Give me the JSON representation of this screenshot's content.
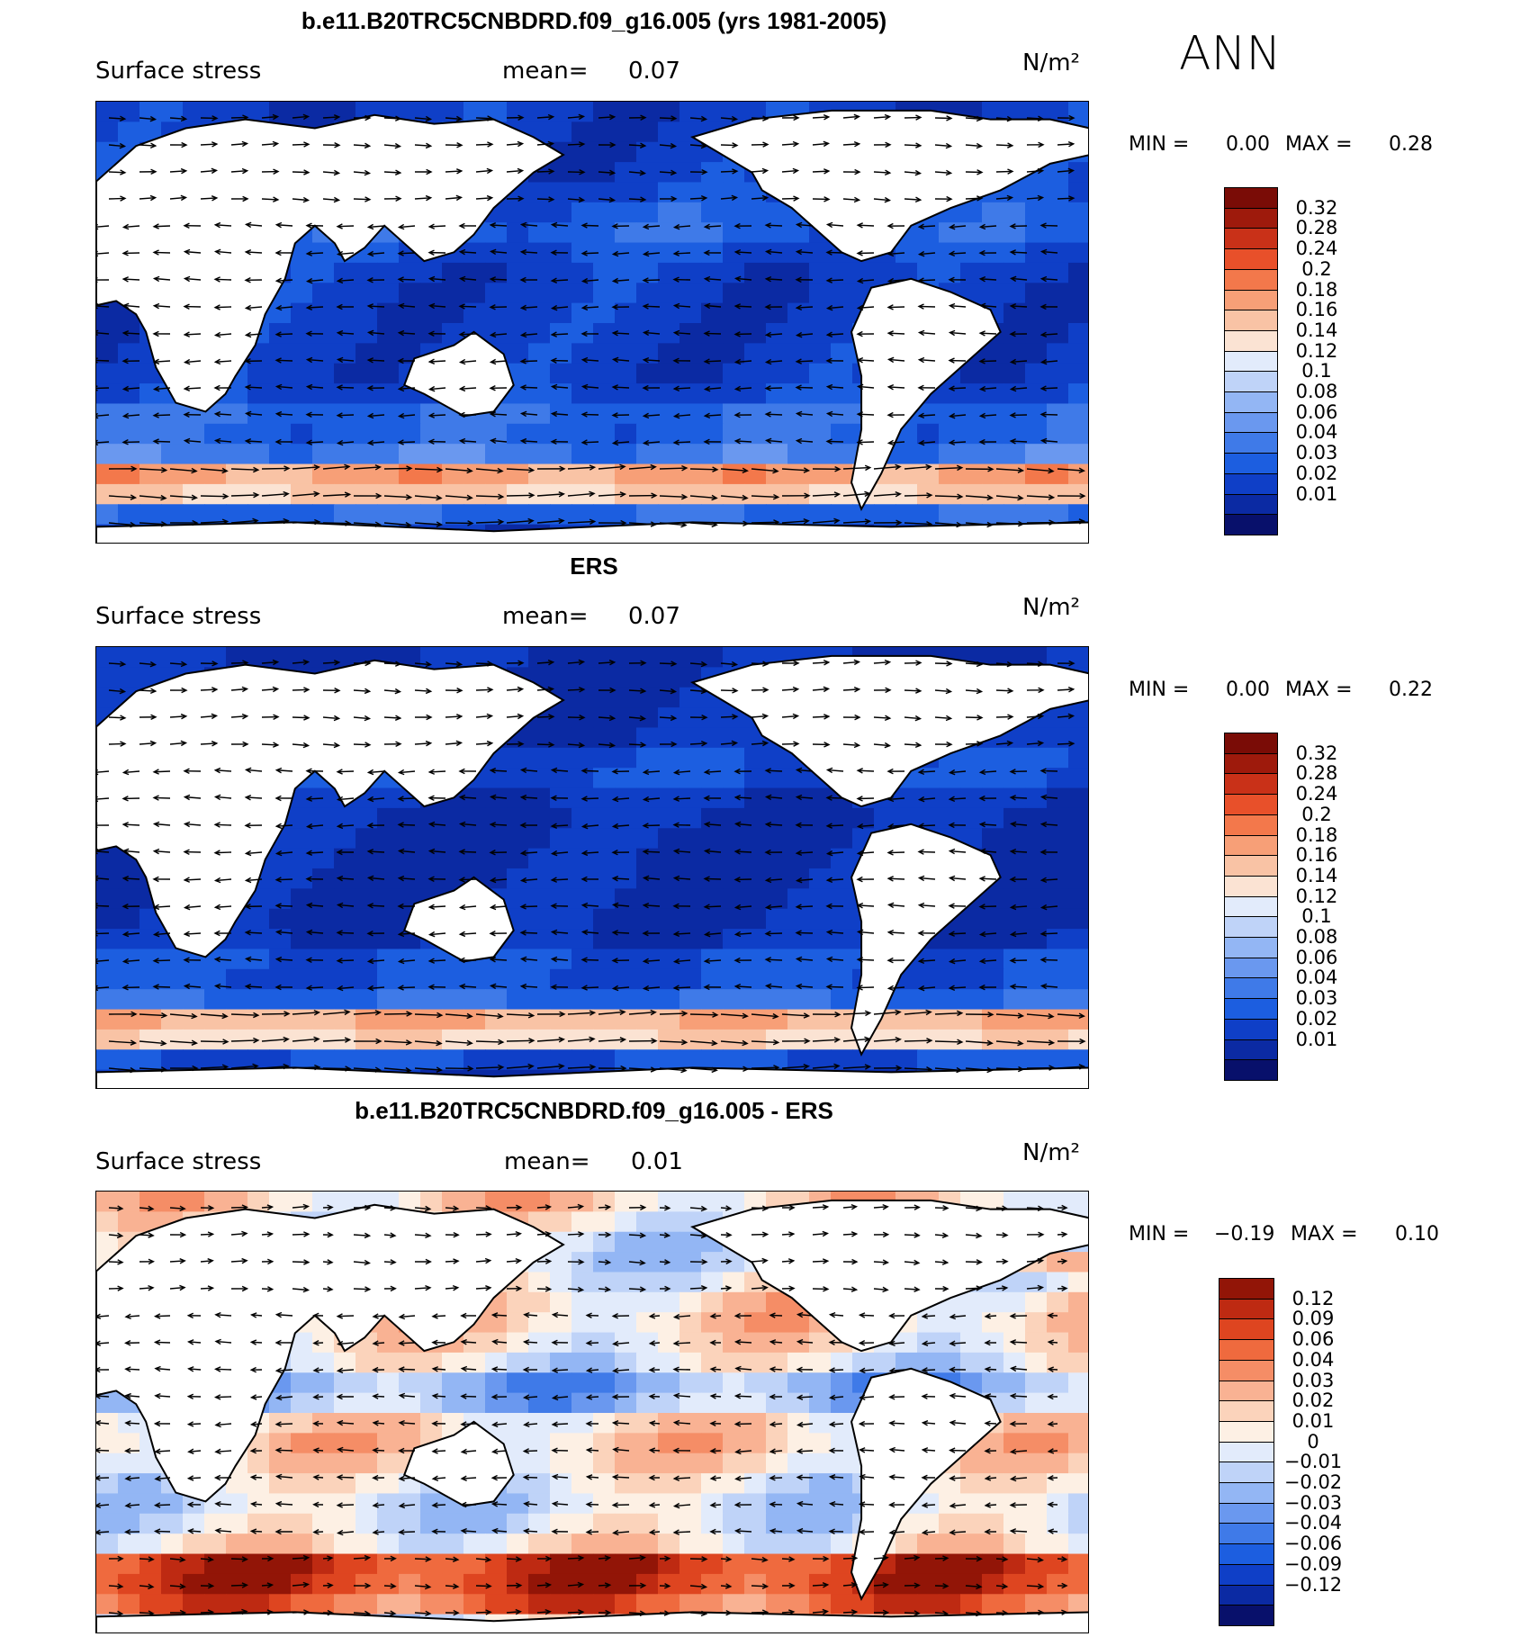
{
  "season": "ANN",
  "colors": {
    "pos_scale": [
      "#08106b",
      "#0b2aa3",
      "#0f3fc7",
      "#1c5ee0",
      "#3f7ae8",
      "#6a98ef",
      "#93b6f4",
      "#bfd3f8",
      "#e2ebfb",
      "#fbe3d3",
      "#f9c3a5",
      "#f79f77",
      "#f3784b",
      "#e8502a",
      "#c93118",
      "#9e1a0c",
      "#7a0c06"
    ],
    "diff_scale": [
      "#08106b",
      "#0b2aa3",
      "#0f3fc7",
      "#1c5ee0",
      "#3f7ae8",
      "#6a98ef",
      "#93b6f4",
      "#bfd3f8",
      "#e2ebfb",
      "#fdf0e4",
      "#fbd3bb",
      "#f9b293",
      "#f58d66",
      "#ef6a3e",
      "#de4520",
      "#be2a12",
      "#921507"
    ],
    "land": "#ffffff",
    "coast": "#000000"
  },
  "panels": [
    {
      "title": "b.e11.B20TRC5CNBDRD.f09_g16.005 (yrs 1981-2005)",
      "variable": "Surface stress",
      "mean_label": "mean=",
      "mean_value": "0.07",
      "units": "N/m²",
      "min_label": "MIN =",
      "min_value": "0.00",
      "max_label": "MAX =",
      "max_value": "0.28",
      "colorbar_labels": [
        "0.32",
        "0.28",
        "0.24",
        "0.2",
        "0.18",
        "0.16",
        "0.14",
        "0.12",
        "0.1",
        "0.08",
        "0.06",
        "0.04",
        "0.03",
        "0.02",
        "0.01"
      ],
      "kind": "model"
    },
    {
      "title": "ERS",
      "variable": "Surface stress",
      "mean_label": "mean=",
      "mean_value": "0.07",
      "units": "N/m²",
      "min_label": "MIN =",
      "min_value": "0.00",
      "max_label": "MAX =",
      "max_value": "0.22",
      "colorbar_labels": [
        "0.32",
        "0.28",
        "0.24",
        "0.2",
        "0.18",
        "0.16",
        "0.14",
        "0.12",
        "0.1",
        "0.08",
        "0.06",
        "0.04",
        "0.03",
        "0.02",
        "0.01"
      ],
      "kind": "obs"
    },
    {
      "title": "b.e11.B20TRC5CNBDRD.f09_g16.005 - ERS",
      "variable": "Surface stress",
      "mean_label": "mean=",
      "mean_value": "0.01",
      "units": "N/m²",
      "min_label": "MIN =",
      "min_value": "−0.19",
      "max_label": "MAX =",
      "max_value": "0.10",
      "colorbar_labels": [
        "0.12",
        "0.09",
        "0.06",
        "0.04",
        "0.03",
        "0.02",
        "0.01",
        "0",
        "−0.01",
        "−0.02",
        "−0.03",
        "−0.04",
        "−0.06",
        "−0.09",
        "−0.12"
      ],
      "kind": "diff"
    }
  ]
}
